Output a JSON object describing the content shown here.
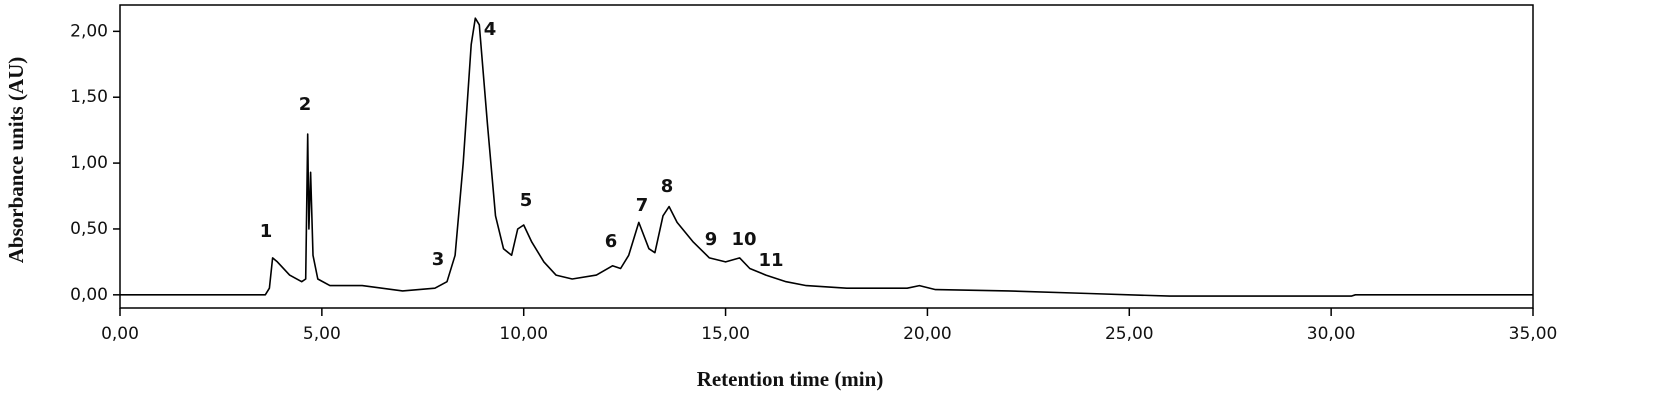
{
  "chart_data": {
    "type": "line",
    "xlabel": "Retention time (min)",
    "ylabel": "Absorbance units (AU)",
    "x": [
      0,
      3.6,
      3.7,
      3.78,
      3.9,
      4.2,
      4.5,
      4.6,
      4.65,
      4.68,
      4.72,
      4.78,
      4.9,
      5.2,
      6,
      7,
      7.8,
      8.1,
      8.3,
      8.5,
      8.7,
      8.8,
      8.9,
      9.1,
      9.3,
      9.5,
      9.7,
      9.85,
      10.0,
      10.2,
      10.5,
      10.8,
      11.2,
      11.8,
      12.2,
      12.4,
      12.6,
      12.85,
      13.1,
      13.25,
      13.45,
      13.6,
      13.8,
      14.2,
      14.6,
      15.0,
      15.35,
      15.6,
      16,
      16.5,
      17,
      18,
      19.5,
      19.8,
      20.2,
      22,
      24,
      26,
      30.5,
      30.6,
      35
    ],
    "values": [
      0,
      0,
      0.05,
      0.28,
      0.25,
      0.15,
      0.1,
      0.12,
      1.22,
      0.5,
      0.93,
      0.3,
      0.12,
      0.07,
      0.07,
      0.03,
      0.05,
      0.1,
      0.3,
      1.0,
      1.9,
      2.1,
      2.05,
      1.3,
      0.6,
      0.35,
      0.3,
      0.5,
      0.53,
      0.4,
      0.25,
      0.15,
      0.12,
      0.15,
      0.22,
      0.2,
      0.3,
      0.55,
      0.35,
      0.32,
      0.6,
      0.67,
      0.55,
      0.4,
      0.28,
      0.25,
      0.28,
      0.2,
      0.15,
      0.1,
      0.07,
      0.05,
      0.05,
      0.07,
      0.04,
      0.03,
      0.01,
      -0.01,
      -0.01,
      0.0,
      0.0
    ],
    "color": "#000000",
    "xlim": [
      0,
      35
    ],
    "ylim": [
      -0.1,
      2.2
    ],
    "xticks": [
      {
        "value": 0,
        "label": "0,00"
      },
      {
        "value": 5,
        "label": "5,00"
      },
      {
        "value": 10,
        "label": "10,00"
      },
      {
        "value": 15,
        "label": "15,00"
      },
      {
        "value": 20,
        "label": "20,00"
      },
      {
        "value": 25,
        "label": "25,00"
      },
      {
        "value": 30,
        "label": "30,00"
      },
      {
        "value": 35,
        "label": "35,00"
      }
    ],
    "yticks": [
      {
        "value": 0,
        "label": "0,00"
      },
      {
        "value": 0.5,
        "label": "0,50"
      },
      {
        "value": 1,
        "label": "1,00"
      },
      {
        "value": 1.5,
        "label": "1,50"
      },
      {
        "value": 2,
        "label": "2,00"
      }
    ],
    "peak_labels": [
      "1",
      "2",
      "3",
      "4",
      "5",
      "6",
      "7",
      "8",
      "9",
      "10",
      "11"
    ]
  }
}
